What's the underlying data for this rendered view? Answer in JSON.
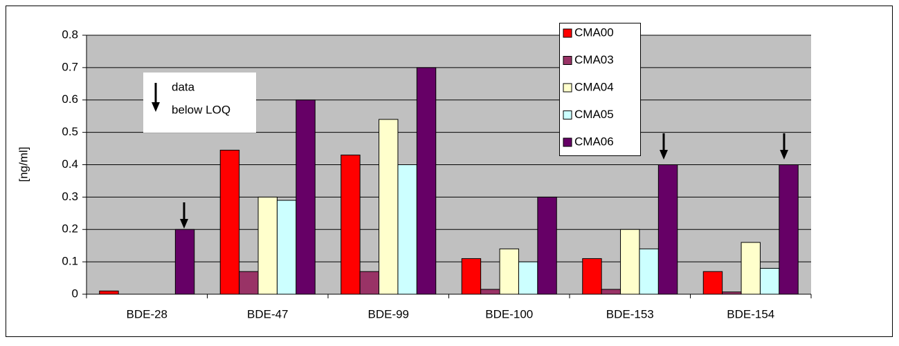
{
  "chart_data": {
    "type": "bar",
    "y_label": "[ng/ml]",
    "annotation": [
      "data",
      "below LOQ"
    ],
    "categories": [
      "BDE-28",
      "BDE-47",
      "BDE-99",
      "BDE-100",
      "BDE-153",
      "BDE-154"
    ],
    "series": [
      {
        "name": "CMA00",
        "color": "#ff0000",
        "values": [
          0.01,
          0.445,
          0.43,
          0.11,
          0.11,
          0.07
        ]
      },
      {
        "name": "CMA03",
        "color": "#993366",
        "values": [
          null,
          0.07,
          0.07,
          0.015,
          0.015,
          0.007
        ]
      },
      {
        "name": "CMA04",
        "color": "#ffffcc",
        "values": [
          null,
          0.3,
          0.54,
          0.14,
          0.2,
          0.16
        ]
      },
      {
        "name": "CMA05",
        "color": "#ccffff",
        "values": [
          null,
          0.29,
          0.4,
          0.1,
          0.14,
          0.08
        ]
      },
      {
        "name": "CMA06",
        "color": "#660066",
        "values": [
          0.2,
          0.6,
          0.7,
          0.3,
          0.4,
          0.4
        ]
      }
    ],
    "ylim": [
      0,
      0.8
    ],
    "yticks": [
      0,
      0.1,
      0.2,
      0.3,
      0.4,
      0.5,
      0.6,
      0.7,
      0.8
    ],
    "grid": true
  }
}
